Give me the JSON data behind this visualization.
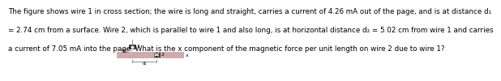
{
  "text_line1": "The figure shows wire 1 in cross section; the wire is long and straight, carries a current of 4.26 mA out of the page, and is at distance d₁",
  "text_line2": "= 2.74 cm from a surface. Wire 2, which is parallel to wire 1 and also long, is at horizontal distance d₂ = 5.02 cm from wire 1 and carries",
  "text_line3": "a current of 7.05 mA into the page. What is the x component of the magnetic force per unit length on wire 2 due to wire 1?",
  "background_color": "#ffffff",
  "text_color": "#000000",
  "text_fontsize": 6.3,
  "surface_color": "#d4a8a8",
  "surface_edge_color": "#aaaaaa",
  "wire_color": "#333333",
  "wire_dot_color": "#ffffff",
  "label1": "1",
  "label2": "2",
  "d1_label": "d₁",
  "d2_label": "d₂",
  "x_label": "x",
  "arrow_color": "#555555",
  "dim_line_color": "#666666"
}
